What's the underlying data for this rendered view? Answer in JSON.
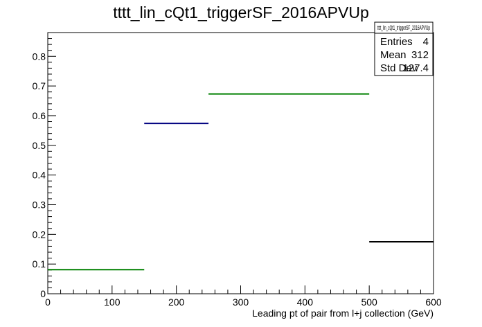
{
  "chart_data": {
    "type": "histogram",
    "title": "tttt_lin_cQt1_triggerSF_2016APVUp",
    "xlabel": "Leading pt of pair from l+j collection (GeV)",
    "ylabel": "",
    "xlim": [
      0,
      600
    ],
    "ylim": [
      0,
      0.88
    ],
    "x_ticks": [
      0,
      100,
      200,
      300,
      400,
      500,
      600
    ],
    "y_ticks": [
      0,
      0.1,
      0.2,
      0.3,
      0.4,
      0.5,
      0.6,
      0.7,
      0.8
    ],
    "x_tick_labels": [
      "0",
      "100",
      "200",
      "300",
      "400",
      "500",
      "600"
    ],
    "y_tick_labels": [
      "0",
      "0.1",
      "0.2",
      "0.3",
      "0.4",
      "0.5",
      "0.6",
      "0.7",
      "0.8"
    ],
    "bins": [
      {
        "x_low": 0,
        "x_high": 150,
        "value": 0.081,
        "color": "#008000"
      },
      {
        "x_low": 150,
        "x_high": 250,
        "value": 0.574,
        "color": "#000080"
      },
      {
        "x_low": 250,
        "x_high": 500,
        "value": 0.673,
        "color": "#008000"
      },
      {
        "x_low": 500,
        "x_high": 600,
        "value": 0.175,
        "color": "#000000"
      }
    ],
    "stats": {
      "name": "tttt_lin_cQt1_triggerSF_2016APVUp",
      "rows": [
        {
          "label": "Entries",
          "value": "4"
        },
        {
          "label": "Mean",
          "value": "312"
        },
        {
          "label": "Std Dev",
          "value": "127.4"
        }
      ]
    }
  }
}
